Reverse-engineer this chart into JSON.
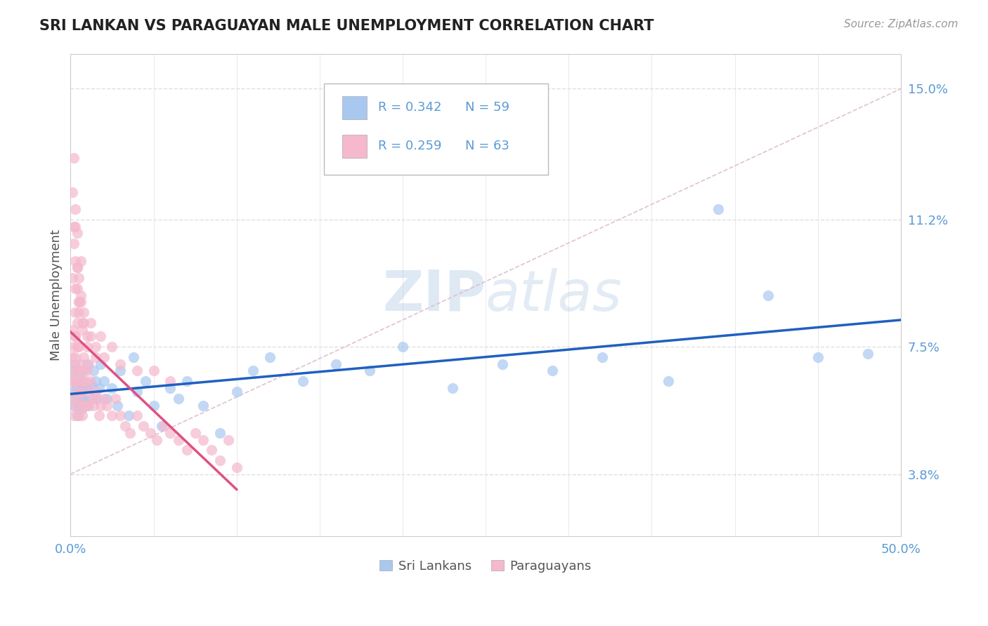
{
  "title": "SRI LANKAN VS PARAGUAYAN MALE UNEMPLOYMENT CORRELATION CHART",
  "source_text": "Source: ZipAtlas.com",
  "ylabel": "Male Unemployment",
  "xlim": [
    0.0,
    0.5
  ],
  "ylim": [
    0.02,
    0.16
  ],
  "yticks": [
    0.038,
    0.075,
    0.112,
    0.15
  ],
  "ytick_labels": [
    "3.8%",
    "7.5%",
    "11.2%",
    "15.0%"
  ],
  "xtick_labels": [
    "0.0%",
    "50.0%"
  ],
  "color_sri": "#a8c8f0",
  "color_para": "#f5b8cc",
  "color_sri_line": "#2060c0",
  "color_para_line": "#e05080",
  "R_sri": 0.342,
  "N_sri": 59,
  "R_para": 0.259,
  "N_para": 63,
  "sri_lankans_x": [
    0.001,
    0.001,
    0.002,
    0.002,
    0.003,
    0.003,
    0.004,
    0.004,
    0.005,
    0.005,
    0.006,
    0.006,
    0.007,
    0.007,
    0.008,
    0.008,
    0.009,
    0.01,
    0.01,
    0.011,
    0.012,
    0.013,
    0.014,
    0.015,
    0.016,
    0.017,
    0.018,
    0.02,
    0.022,
    0.025,
    0.028,
    0.03,
    0.035,
    0.038,
    0.04,
    0.045,
    0.05,
    0.055,
    0.06,
    0.065,
    0.07,
    0.08,
    0.09,
    0.1,
    0.11,
    0.12,
    0.14,
    0.16,
    0.18,
    0.2,
    0.23,
    0.26,
    0.29,
    0.32,
    0.36,
    0.39,
    0.42,
    0.45,
    0.48
  ],
  "sri_lankans_y": [
    0.062,
    0.068,
    0.058,
    0.065,
    0.06,
    0.07,
    0.055,
    0.063,
    0.058,
    0.066,
    0.06,
    0.064,
    0.057,
    0.063,
    0.06,
    0.068,
    0.059,
    0.063,
    0.07,
    0.058,
    0.064,
    0.06,
    0.068,
    0.065,
    0.06,
    0.063,
    0.07,
    0.065,
    0.06,
    0.063,
    0.058,
    0.068,
    0.055,
    0.072,
    0.062,
    0.065,
    0.058,
    0.052,
    0.063,
    0.06,
    0.065,
    0.058,
    0.05,
    0.062,
    0.068,
    0.072,
    0.065,
    0.07,
    0.068,
    0.075,
    0.063,
    0.07,
    0.068,
    0.072,
    0.065,
    0.115,
    0.09,
    0.072,
    0.073
  ],
  "paraguayans_x": [
    0.0005,
    0.001,
    0.001,
    0.001,
    0.001,
    0.002,
    0.002,
    0.002,
    0.002,
    0.003,
    0.003,
    0.003,
    0.003,
    0.004,
    0.004,
    0.004,
    0.005,
    0.005,
    0.005,
    0.005,
    0.006,
    0.006,
    0.006,
    0.007,
    0.007,
    0.007,
    0.008,
    0.008,
    0.008,
    0.009,
    0.009,
    0.01,
    0.01,
    0.011,
    0.011,
    0.012,
    0.013,
    0.014,
    0.015,
    0.016,
    0.017,
    0.018,
    0.02,
    0.022,
    0.025,
    0.027,
    0.03,
    0.033,
    0.036,
    0.04,
    0.044,
    0.048,
    0.052,
    0.056,
    0.06,
    0.065,
    0.07,
    0.075,
    0.08,
    0.085,
    0.09,
    0.095,
    0.1
  ],
  "paraguayans_y": [
    0.065,
    0.06,
    0.068,
    0.072,
    0.08,
    0.055,
    0.065,
    0.07,
    0.075,
    0.058,
    0.065,
    0.072,
    0.078,
    0.062,
    0.068,
    0.075,
    0.055,
    0.06,
    0.068,
    0.075,
    0.058,
    0.065,
    0.07,
    0.055,
    0.062,
    0.068,
    0.058,
    0.065,
    0.072,
    0.058,
    0.065,
    0.058,
    0.068,
    0.062,
    0.07,
    0.065,
    0.06,
    0.058,
    0.062,
    0.06,
    0.055,
    0.058,
    0.06,
    0.058,
    0.055,
    0.06,
    0.055,
    0.052,
    0.05,
    0.055,
    0.052,
    0.05,
    0.048,
    0.052,
    0.05,
    0.048,
    0.045,
    0.05,
    0.048,
    0.045,
    0.042,
    0.048,
    0.04
  ],
  "para_outliers_x": [
    0.001,
    0.001,
    0.002,
    0.003,
    0.003,
    0.004,
    0.005,
    0.006,
    0.007,
    0.008,
    0.01,
    0.012,
    0.015,
    0.018,
    0.02,
    0.025,
    0.03,
    0.04,
    0.05,
    0.06,
    0.002,
    0.003,
    0.004,
    0.005,
    0.006,
    0.007,
    0.008,
    0.01,
    0.012,
    0.015,
    0.003,
    0.004,
    0.005,
    0.006,
    0.003,
    0.004,
    0.005,
    0.003,
    0.004,
    0.002
  ],
  "para_outliers_y": [
    0.12,
    0.095,
    0.11,
    0.1,
    0.085,
    0.092,
    0.088,
    0.09,
    0.082,
    0.085,
    0.078,
    0.082,
    0.075,
    0.078,
    0.072,
    0.075,
    0.07,
    0.068,
    0.068,
    0.065,
    0.105,
    0.092,
    0.098,
    0.085,
    0.088,
    0.08,
    0.082,
    0.075,
    0.078,
    0.072,
    0.115,
    0.108,
    0.095,
    0.1,
    0.078,
    0.082,
    0.088,
    0.11,
    0.098,
    0.13
  ],
  "background_color": "#ffffff",
  "grid_color": "#e0e0e0",
  "title_color": "#222222",
  "axis_label_color": "#555555",
  "tick_color": "#5b9bd5",
  "watermark_text": "ZIPatlas",
  "watermark_color": "#b8cfe8",
  "watermark_alpha": 0.45
}
